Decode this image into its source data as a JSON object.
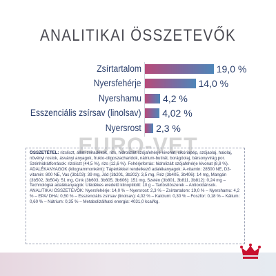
{
  "title": "ANALITIKAI ÖSSZETEVŐK",
  "watermark": "EURO-VET",
  "colors": {
    "bar_start": "#b84a79",
    "bar_mid": "#7b6aa0",
    "bar_end": "#4e86b8",
    "text": "#2a3e6b",
    "brand_red": "#c8102e"
  },
  "chart_data": {
    "type": "bar",
    "orientation": "horizontal",
    "title": "ANALITIKAI ÖSSZETEVŐK",
    "categories": [
      "Zsírtartalom",
      "Nyersfehérje",
      "Nyershamu",
      "Esszenciális zsírsav (linolsav)",
      "Nyersrost"
    ],
    "values": [
      19.0,
      14.0,
      4.2,
      4.02,
      2.3
    ],
    "value_labels": [
      "19,0 %",
      "14,0 %",
      "4,2 %",
      "4,02 %",
      "2,3 %"
    ],
    "unit": "%",
    "xlim": [
      0,
      20
    ]
  },
  "composition": {
    "heading": "ÖSSZETÉTEL:",
    "text": "rizsliszt, állati zsiradékok, rizs, hidrolizált szójafehérje kivonat, cikóriapép, szójaolaj, halolaj, növényi rostok, ásványi anyagok, frukto-oligoszacharidok, nátrium-butirát, borágóolaj, bársonyvirág por. Szénhidrátforrások: rizsliszt (44,5 %), rizs (12,6 %). Fehérjeforrás: hidrolizált szójafehérje kivonat (8,8 %). ADALÉKANYAGOK (kilogrammonként): Tápértékkel rendelkező adalékanyagok: A-vitamin: 28500 NE, D3-vitamin: 800 NE, Vas (3b103): 39 mg, Jód (3b201, 3b202): 3,5 mg, Réz (3b405, 3b406): 14 mg, Mangán (3b502, 3b504): 51 mg, Cink (3b603, 3b605, 3b606): 151 mg, Szelén (3b801, 3b811, 3b812): 0,24 mg – Technológiai adalékanyagok: Ulédékes eredetű klinoptilolit: 10 g – Tartósítószerek – Antioxidánsok.",
    "analytic": "ANALITIKAI ÖSSZETEVŐK: Nyersfehérje: 14,0 % – Nyersrost: 2,3 % – Zsírtartalom: 19,0 % – Nyershamu: 4,2 % – EPA/ DHA: 0,50 % – Esszenciális zsírsav (linolsav): 4,02 % – Kalcium: 0,30 % – Foszfor: 0,18 % – Kálium: 0,60 % – Nátrium: 0,35 % – Metabolizálható energia: 4031,0 kcal/kg."
  },
  "logo": {
    "icon": "royal-canin-crown-logo"
  }
}
